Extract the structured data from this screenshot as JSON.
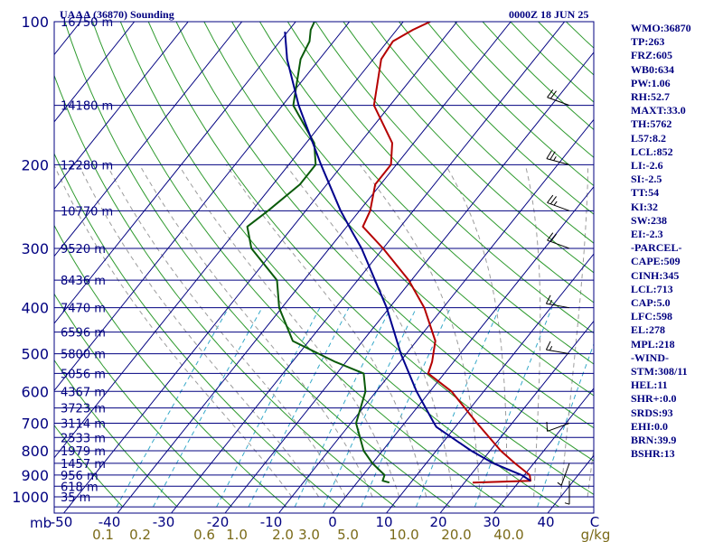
{
  "header": {
    "station": "UAAA (36870) Sounding",
    "time": "0000Z 18 JUN 25"
  },
  "axis": {
    "mb_label": "mb",
    "wind_barb_units": "m/s"
  },
  "colors": {
    "axes": "#000080",
    "isobar": "#000080",
    "isotherm": "#000080",
    "dry_adiabat": "#2e9a2e",
    "moist_adiabat": "#9c9c9c",
    "mixing_ratio": "#36a9c9",
    "temperature": "#b50000",
    "dewpoint": "#0a5a0a",
    "parcel": "#00008c",
    "mixing_labels": "#7a6a18",
    "wind": "#000000"
  },
  "indices": [
    "WMO:36870",
    "TP:263",
    "FRZ:605",
    "WB0:634",
    "PW:1.06",
    "RH:52.7",
    "MAXT:33.0",
    "TH:5762",
    "L57:8.2",
    "LCL:852",
    "LI:-2.6",
    "SI:-2.5",
    "TT:54",
    "KI:32",
    "SW:238",
    "EI:-2.3",
    "-PARCEL-",
    "CAPE:509",
    "CINH:345",
    "LCL:713",
    "CAP:5.0",
    "LFC:598",
    "EL:278",
    "MPL:218",
    "-WIND-",
    "STM:308/11",
    "HEL:11",
    "SHR+:0.0",
    "SRDS:93",
    "EHI:0.0",
    "BRN:39.9",
    "BSHR:13"
  ],
  "chart_data": {
    "type": "line",
    "title": "UAAA (36870) Sounding",
    "subtitle": "0000Z 18 JUN 25",
    "xlabel": "",
    "ylabel": "mb",
    "x_units": "C (skewed isotherms)",
    "y_scale": "log",
    "ylim": [
      1050,
      100
    ],
    "isotherm_tick_labels": [
      "-50",
      "-40",
      "-30",
      "-20",
      "-10",
      "0",
      "10",
      "20",
      "30",
      "40",
      "C"
    ],
    "pressure_tick_labels": [
      100,
      200,
      300,
      400,
      500,
      600,
      700,
      800,
      900,
      1000
    ],
    "mixing_ratio_labels": [
      "0.1",
      "0.2",
      "0.6",
      "1.0",
      "2.0",
      "3.0",
      "5.0",
      "10.0",
      "20.0",
      "40.0",
      "g/kg"
    ],
    "mixing_ratio_values": [
      0.1,
      0.2,
      0.6,
      1.0,
      2.0,
      3.0,
      5.0,
      10.0,
      20.0,
      40.0
    ],
    "height_labels": [
      {
        "p": 100,
        "text": "16750 m"
      },
      {
        "p": 150,
        "text": "14180 m"
      },
      {
        "p": 200,
        "text": "12280 m"
      },
      {
        "p": 250,
        "text": "10770 m"
      },
      {
        "p": 300,
        "text": "9520 m"
      },
      {
        "p": 350,
        "text": "8436 m"
      },
      {
        "p": 400,
        "text": "7470 m"
      },
      {
        "p": 450,
        "text": "6596 m"
      },
      {
        "p": 500,
        "text": "5800 m"
      },
      {
        "p": 550,
        "text": "5056 m"
      },
      {
        "p": 600,
        "text": "4367 m"
      },
      {
        "p": 650,
        "text": "3723 m"
      },
      {
        "p": 700,
        "text": "3114 m"
      },
      {
        "p": 750,
        "text": "2533 m"
      },
      {
        "p": 800,
        "text": "1979 m"
      },
      {
        "p": 850,
        "text": "1457 m"
      },
      {
        "p": 900,
        "text": "956 m"
      },
      {
        "p": 950,
        "text": "618 m"
      },
      {
        "p": 1000,
        "text": "35 m"
      }
    ],
    "series": [
      {
        "name": "Temperature",
        "points": [
          [
            933,
            21.5
          ],
          [
            925,
            32.0
          ],
          [
            900,
            31.0
          ],
          [
            850,
            26.5
          ],
          [
            800,
            22.0
          ],
          [
            700,
            13.5
          ],
          [
            600,
            4.0
          ],
          [
            550,
            -3.0
          ],
          [
            520,
            -4.0
          ],
          [
            470,
            -6.5
          ],
          [
            400,
            -13.5
          ],
          [
            350,
            -20.5
          ],
          [
            300,
            -30.0
          ],
          [
            270,
            -37.0
          ],
          [
            250,
            -38.0
          ],
          [
            220,
            -41.0
          ],
          [
            200,
            -41.0
          ],
          [
            180,
            -44.0
          ],
          [
            150,
            -53.0
          ],
          [
            120,
            -58.5
          ],
          [
            110,
            -59.0
          ],
          [
            104,
            -57.0
          ],
          [
            100,
            -55.0
          ]
        ]
      },
      {
        "name": "Dewpoint",
        "points": [
          [
            933,
            6.0
          ],
          [
            925,
            4.5
          ],
          [
            900,
            4.0
          ],
          [
            850,
            0.0
          ],
          [
            800,
            -3.5
          ],
          [
            700,
            -9.0
          ],
          [
            600,
            -12.0
          ],
          [
            550,
            -15.0
          ],
          [
            520,
            -22.0
          ],
          [
            470,
            -33.0
          ],
          [
            400,
            -40.5
          ],
          [
            350,
            -45.0
          ],
          [
            300,
            -54.5
          ],
          [
            270,
            -58.5
          ],
          [
            250,
            -57.0
          ],
          [
            220,
            -55.0
          ],
          [
            200,
            -55.0
          ],
          [
            180,
            -58.5
          ],
          [
            150,
            -68.0
          ],
          [
            120,
            -73.5
          ],
          [
            110,
            -74.5
          ],
          [
            104,
            -76.0
          ],
          [
            100,
            -76.5
          ]
        ]
      },
      {
        "name": "Parcel",
        "points": [
          [
            925,
            32.0
          ],
          [
            900,
            29.5
          ],
          [
            850,
            22.5
          ],
          [
            800,
            16.5
          ],
          [
            713,
            6.5
          ],
          [
            700,
            5.5
          ],
          [
            600,
            -2.5
          ],
          [
            500,
            -11.0
          ],
          [
            400,
            -20.5
          ],
          [
            300,
            -34.0
          ],
          [
            278,
            -38.0
          ],
          [
            250,
            -43.5
          ],
          [
            200,
            -54.0
          ],
          [
            150,
            -67.0
          ],
          [
            120,
            -76.0
          ],
          [
            105,
            -80.5
          ]
        ]
      }
    ],
    "wind_barbs": [
      {
        "p": 925,
        "dir": 180,
        "spd": 5
      },
      {
        "p": 850,
        "dir": 200,
        "spd": 5
      },
      {
        "p": 700,
        "dir": 250,
        "spd": 10
      },
      {
        "p": 500,
        "dir": 280,
        "spd": 15
      },
      {
        "p": 400,
        "dir": 280,
        "spd": 15
      },
      {
        "p": 300,
        "dir": 290,
        "spd": 20
      },
      {
        "p": 250,
        "dir": 290,
        "spd": 25
      },
      {
        "p": 200,
        "dir": 285,
        "spd": 25
      },
      {
        "p": 150,
        "dir": 290,
        "spd": 20
      }
    ],
    "grid": true
  }
}
